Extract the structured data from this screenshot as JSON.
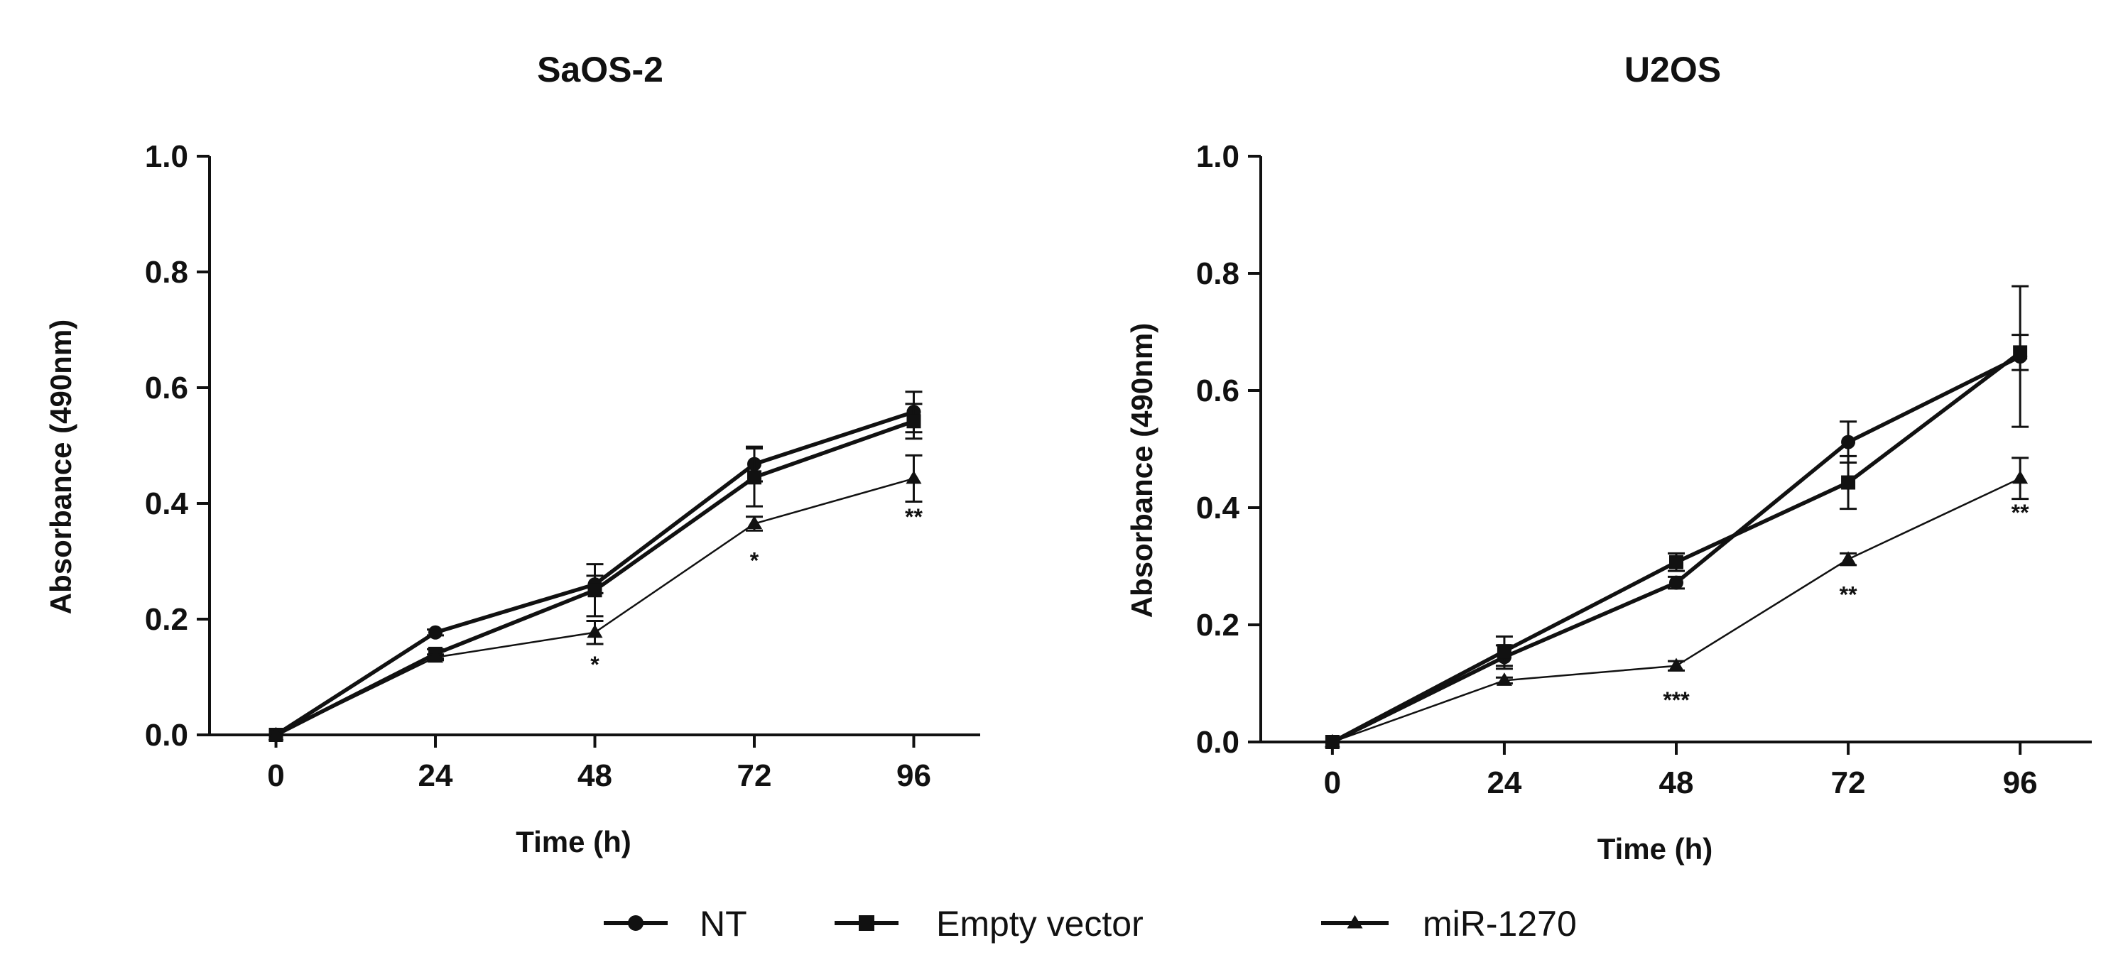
{
  "legend": [
    {
      "name": "NT",
      "marker": "circle"
    },
    {
      "name": "Empty vector",
      "marker": "square"
    },
    {
      "name": "miR-1270",
      "marker": "triangle"
    }
  ],
  "chart_data": [
    {
      "type": "line",
      "title": "SaOS-2",
      "xlabel": "Time (h)",
      "ylabel": "Absorbance (490nm)",
      "x": [
        0,
        24,
        48,
        72,
        96
      ],
      "xlim": [
        -10,
        106
      ],
      "ylim": [
        0,
        1.0
      ],
      "yticks": [
        0.0,
        0.2,
        0.4,
        0.6,
        0.8,
        1.0
      ],
      "ytick_labels": [
        "0.0",
        "0.2",
        "0.4",
        "0.6",
        "0.8",
        "1.0"
      ],
      "series": [
        {
          "name": "NT",
          "marker": "circle",
          "values": [
            0.0,
            0.177,
            0.26,
            0.468,
            0.558
          ],
          "errors": [
            0.0,
            0.005,
            0.015,
            0.03,
            0.035
          ]
        },
        {
          "name": "Empty vector",
          "marker": "square",
          "values": [
            0.0,
            0.14,
            0.25,
            0.445,
            0.542
          ],
          "errors": [
            0.0,
            0.008,
            0.045,
            0.05,
            0.03
          ]
        },
        {
          "name": "miR-1270",
          "marker": "triangle",
          "values": [
            0.0,
            0.134,
            0.177,
            0.365,
            0.443
          ],
          "errors": [
            0.0,
            0.005,
            0.02,
            0.012,
            0.04
          ]
        }
      ],
      "annotations": [
        {
          "x": 48,
          "y": 0.135,
          "text": "*"
        },
        {
          "x": 72,
          "y": 0.315,
          "text": "*"
        },
        {
          "x": 96,
          "y": 0.39,
          "text": "**"
        }
      ]
    },
    {
      "type": "line",
      "title": "U2OS",
      "xlabel": "Time (h)",
      "ylabel": "Absorbance (490nm)",
      "x": [
        0,
        24,
        48,
        72,
        96
      ],
      "xlim": [
        -10,
        106
      ],
      "ylim": [
        0,
        1.0
      ],
      "yticks": [
        0.0,
        0.2,
        0.4,
        0.6,
        0.8,
        1.0
      ],
      "ytick_labels": [
        "0.0",
        "0.2",
        "0.4",
        "0.6",
        "0.8",
        "1.0"
      ],
      "series": [
        {
          "name": "NT",
          "marker": "circle",
          "values": [
            0.0,
            0.145,
            0.272,
            0.512,
            0.658
          ],
          "errors": [
            0.0,
            0.02,
            0.01,
            0.035,
            0.12
          ]
        },
        {
          "name": "Empty vector",
          "marker": "square",
          "values": [
            0.0,
            0.155,
            0.307,
            0.443,
            0.665
          ],
          "errors": [
            0.0,
            0.025,
            0.015,
            0.045,
            0.03
          ]
        },
        {
          "name": "miR-1270",
          "marker": "triangle",
          "values": [
            0.0,
            0.105,
            0.13,
            0.312,
            0.45
          ],
          "errors": [
            0.0,
            0.005,
            0.008,
            0.01,
            0.035
          ]
        }
      ],
      "annotations": [
        {
          "x": 48,
          "y": 0.085,
          "text": "***"
        },
        {
          "x": 72,
          "y": 0.265,
          "text": "**"
        },
        {
          "x": 96,
          "y": 0.405,
          "text": "**"
        }
      ]
    }
  ]
}
